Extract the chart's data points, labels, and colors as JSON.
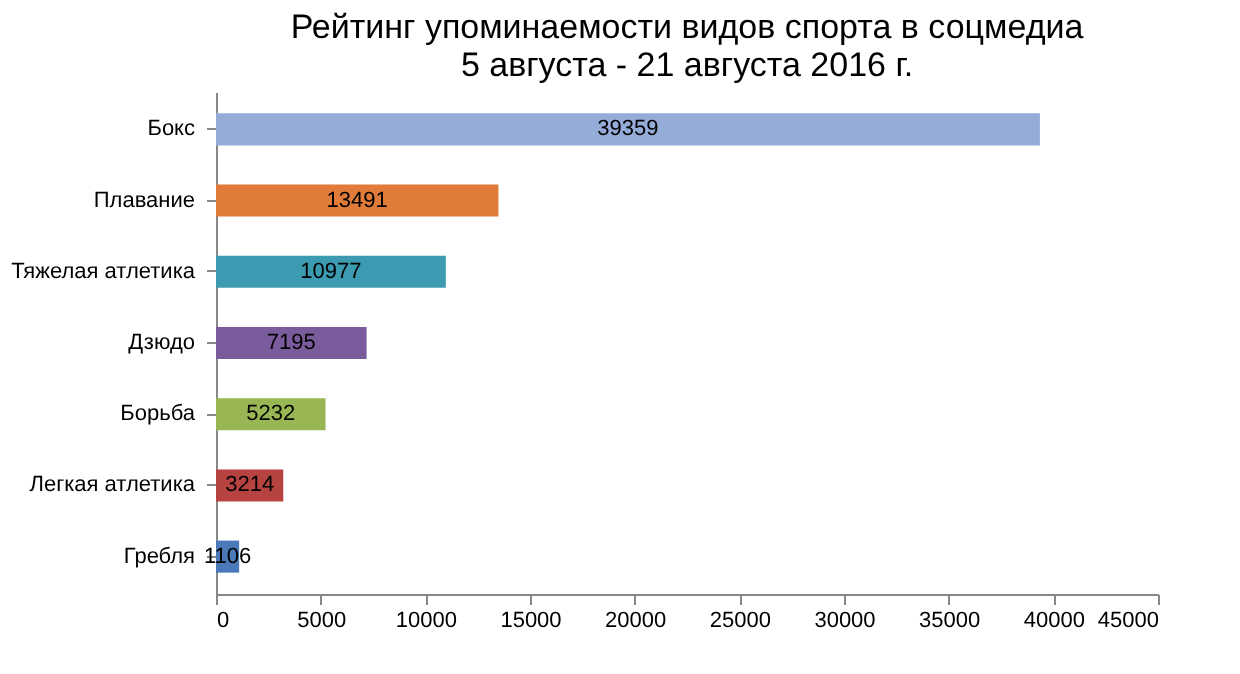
{
  "chart_data": {
    "type": "bar",
    "orientation": "horizontal",
    "title": "Рейтинг упоминаемости видов спорта в соцмедиа\n5 августа - 21 августа 2016 г.",
    "categories": [
      "Бокс",
      "Плавание",
      "Тяжелая атлетика",
      "Дзюдо",
      "Борьба",
      "Легкая атлетика",
      "Гребля"
    ],
    "values": [
      39359,
      13491,
      10977,
      7195,
      5232,
      3214,
      1106
    ],
    "colors": [
      "#95abd8",
      "#e07b39",
      "#3d9bb1",
      "#7a5c9d",
      "#98b654",
      "#b6433f",
      "#4a78b9"
    ],
    "xlim": [
      0,
      45000
    ],
    "xticks": [
      0,
      5000,
      10000,
      15000,
      20000,
      25000,
      30000,
      35000,
      40000,
      45000
    ],
    "grid": false,
    "data_labels": true
  }
}
